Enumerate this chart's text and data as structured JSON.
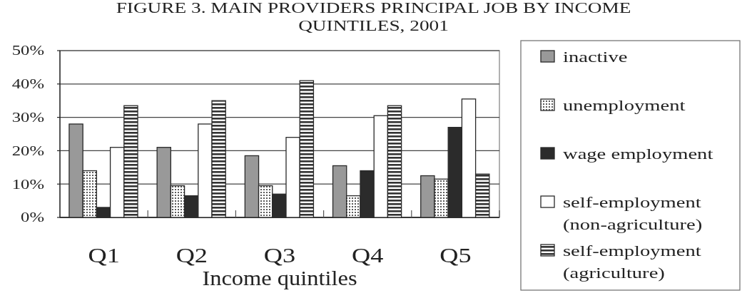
{
  "chart_data": {
    "type": "bar",
    "title": "FIGURE 3. MAIN PROVIDERS PRINCIPAL JOB BY INCOME QUINTILES, 2001",
    "xlabel": "Income quintiles",
    "categories": [
      "Q1",
      "Q2",
      "Q3",
      "Q4",
      "Q5"
    ],
    "series": [
      {
        "name": "inactive",
        "color": "#999999",
        "values": [
          28,
          21,
          18.5,
          15.5,
          12.5
        ]
      },
      {
        "name": "unemployment",
        "color": "#333333",
        "values": [
          14,
          9.5,
          9.5,
          6.5,
          11.5
        ]
      },
      {
        "name": "wage employment",
        "color": "#2b2b2b",
        "values": [
          3,
          6.5,
          7,
          14,
          27
        ]
      },
      {
        "name": "self-employment (non-agriculture)",
        "color": "#ffffff",
        "values": [
          21,
          28,
          24,
          30.5,
          35.5
        ]
      },
      {
        "name": "self-employment (agriculture)",
        "color": "#333333",
        "values": [
          33.5,
          35,
          41,
          33.5,
          13
        ]
      }
    ],
    "ylim": [
      0,
      50
    ],
    "yticks": [
      {
        "value": 0,
        "label": "0%"
      },
      {
        "value": 10,
        "label": "10%"
      },
      {
        "value": 20,
        "label": "20%"
      },
      {
        "value": 30,
        "label": "30%"
      },
      {
        "value": 40,
        "label": "40%"
      },
      {
        "value": 50,
        "label": "50%"
      }
    ],
    "grid": "y",
    "legend": "right"
  }
}
